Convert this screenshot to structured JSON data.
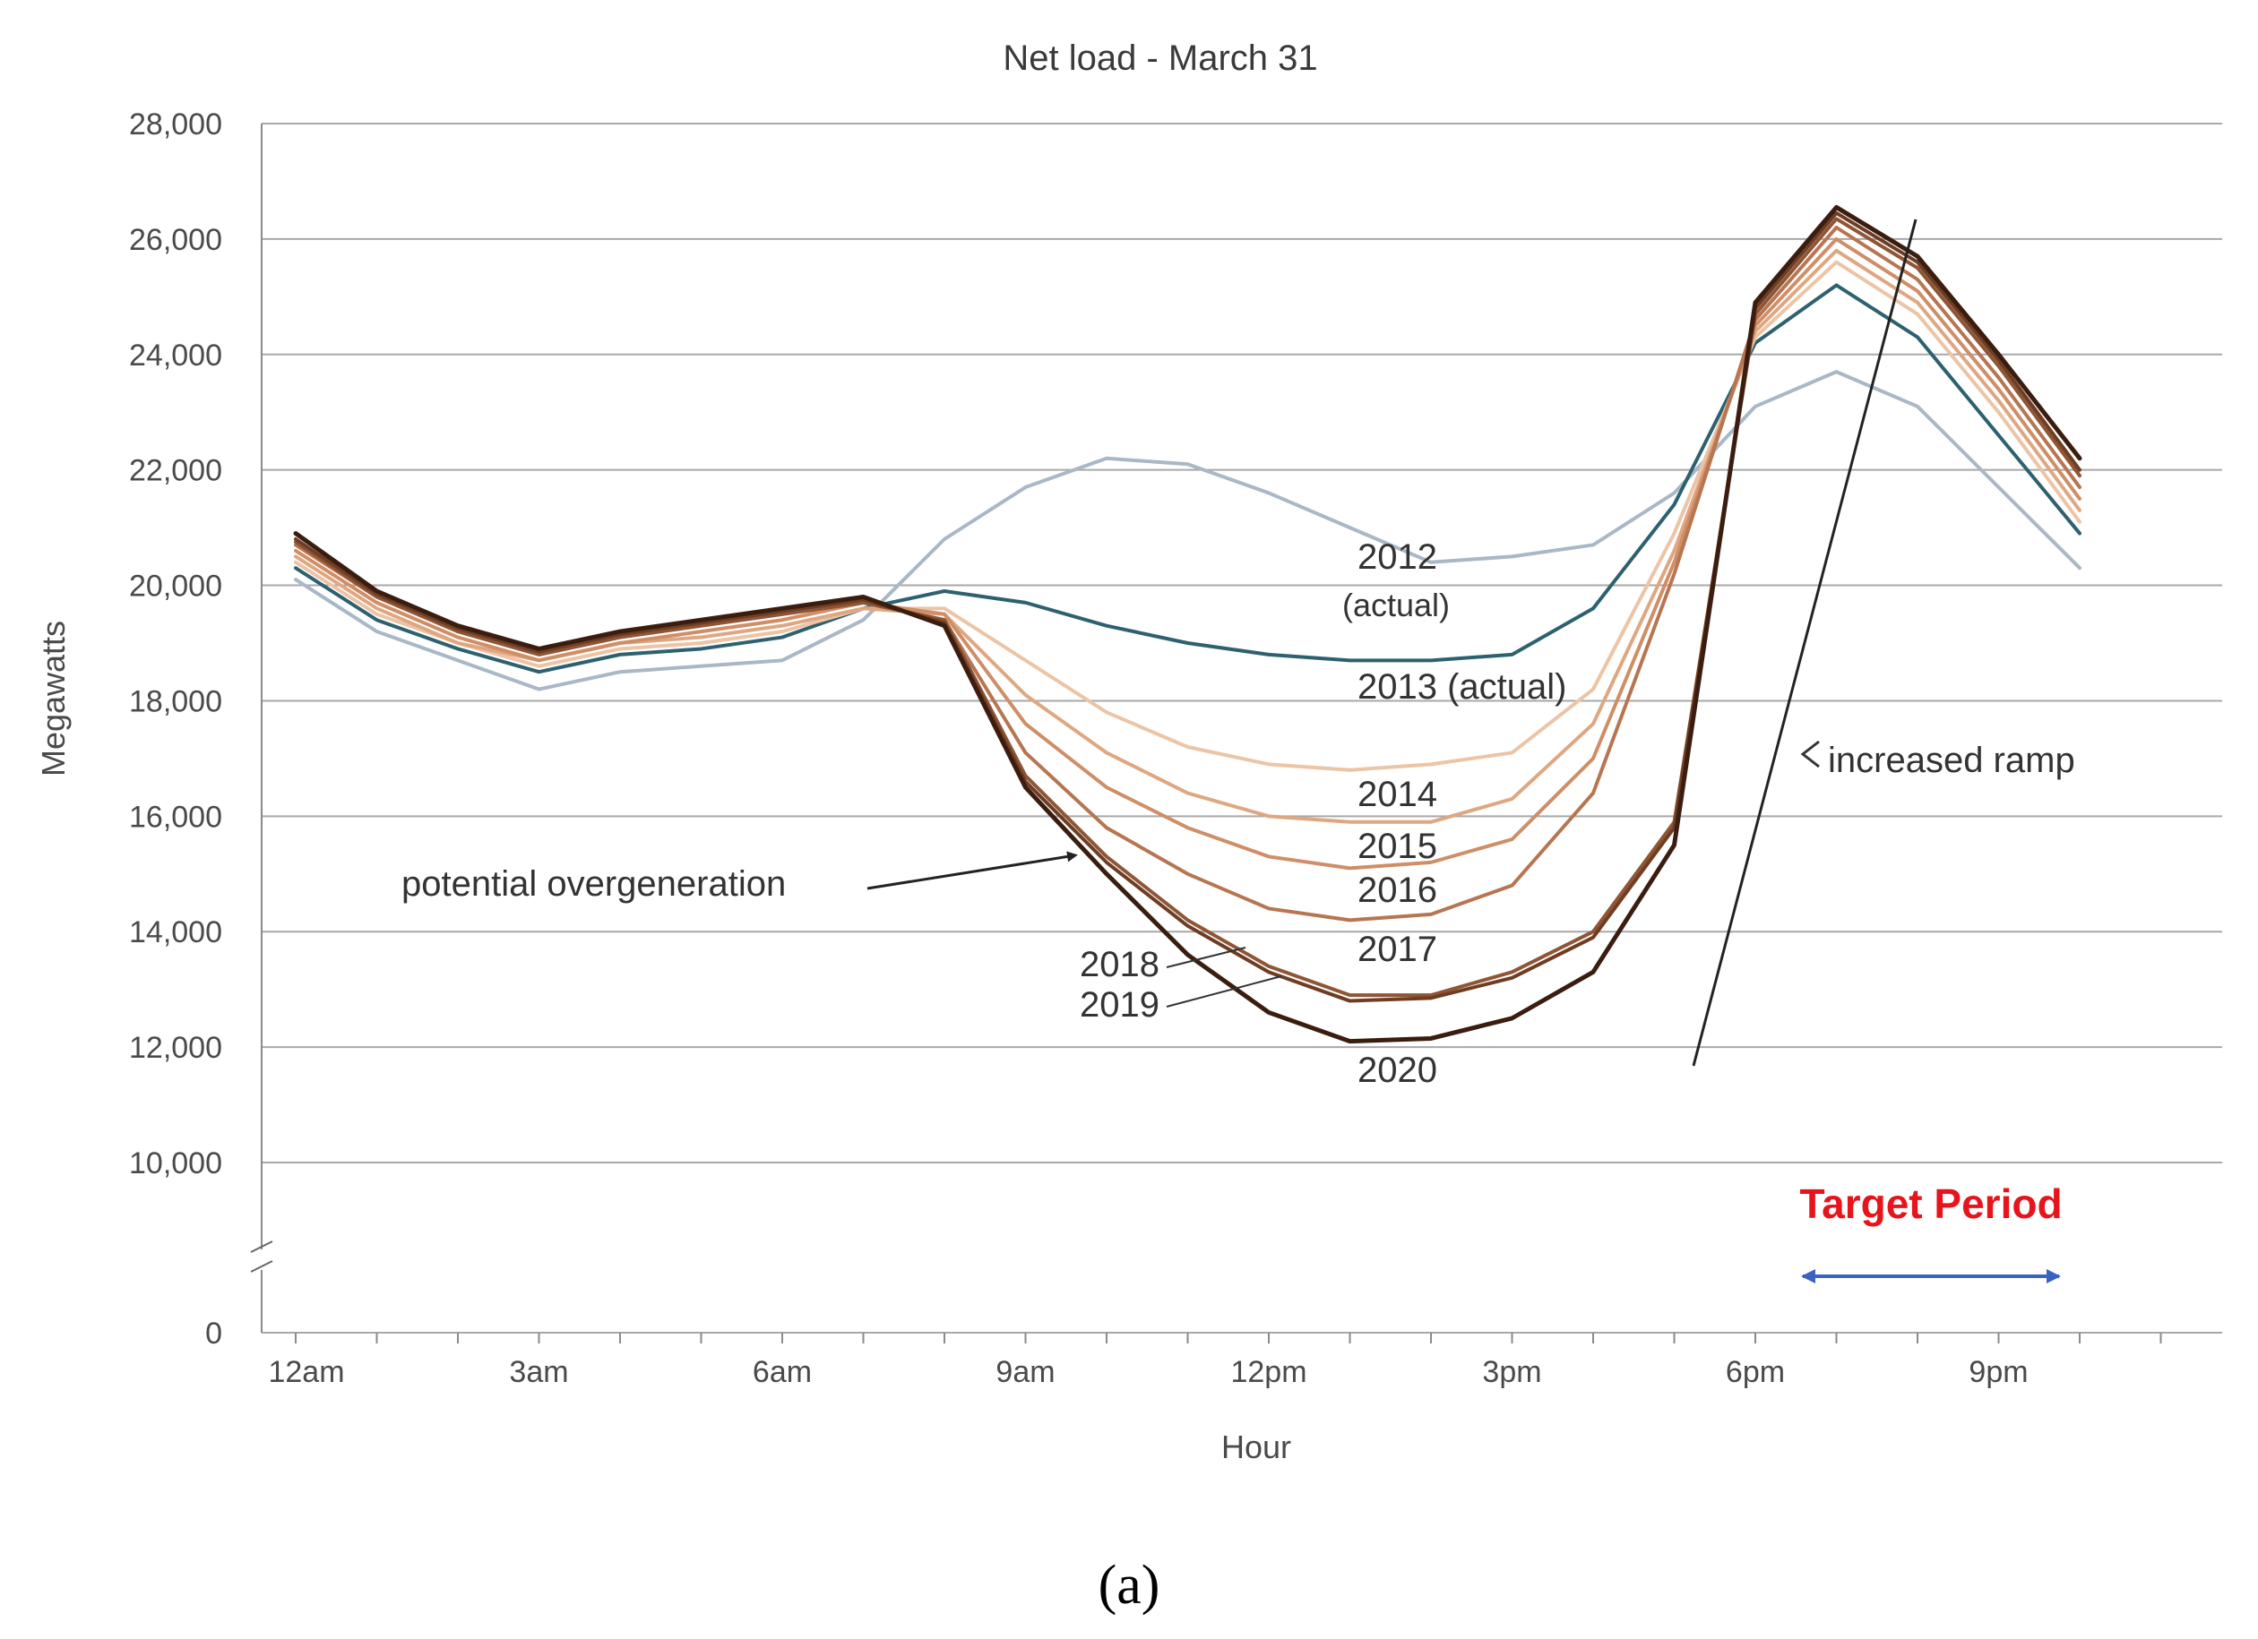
{
  "chart_data": {
    "type": "line",
    "title": "Net load - March 31",
    "xlabel": "Hour",
    "ylabel": "Megawatts",
    "x": [
      0,
      1,
      2,
      3,
      4,
      5,
      6,
      7,
      8,
      9,
      10,
      11,
      12,
      13,
      14,
      15,
      16,
      17,
      18,
      19,
      20,
      21,
      22,
      23
    ],
    "xticks": [
      {
        "hour": 0,
        "label": "12am"
      },
      {
        "hour": 3,
        "label": "3am"
      },
      {
        "hour": 6,
        "label": "6am"
      },
      {
        "hour": 9,
        "label": "9am"
      },
      {
        "hour": 12,
        "label": "12pm"
      },
      {
        "hour": 15,
        "label": "3pm"
      },
      {
        "hour": 18,
        "label": "6pm"
      },
      {
        "hour": 21,
        "label": "9pm"
      }
    ],
    "yticks": [
      {
        "value": 28000,
        "label": "28,000"
      },
      {
        "value": 26000,
        "label": "26,000"
      },
      {
        "value": 24000,
        "label": "24,000"
      },
      {
        "value": 22000,
        "label": "22,000"
      },
      {
        "value": 20000,
        "label": "20,000"
      },
      {
        "value": 18000,
        "label": "18,000"
      },
      {
        "value": 16000,
        "label": "16,000"
      },
      {
        "value": 14000,
        "label": "14,000"
      },
      {
        "value": 12000,
        "label": "12,000"
      },
      {
        "value": 10000,
        "label": "10,000"
      },
      {
        "value": 0,
        "label": "0"
      }
    ],
    "ylim": [
      10000,
      28000
    ],
    "y_axis_break": true,
    "grid": true,
    "series": [
      {
        "name": "2012 (actual)",
        "color": "#a9b7c6",
        "values": [
          20100,
          19200,
          18700,
          18200,
          18500,
          18600,
          18700,
          19400,
          20800,
          21700,
          22200,
          22100,
          21600,
          21000,
          20400,
          20500,
          20700,
          21600,
          23100,
          23700,
          23100,
          21700,
          20300,
          null
        ]
      },
      {
        "name": "2013 (actual)",
        "color": "#2d6170",
        "values": [
          20300,
          19400,
          18900,
          18500,
          18800,
          18900,
          19100,
          19600,
          19900,
          19700,
          19300,
          19000,
          18800,
          18700,
          18700,
          18800,
          19600,
          21400,
          24200,
          25200,
          24300,
          22600,
          20900,
          null
        ]
      },
      {
        "name": "2014",
        "color": "#ecc4a6",
        "values": [
          20400,
          19500,
          19000,
          18600,
          18900,
          19000,
          19200,
          19600,
          19600,
          18700,
          17800,
          17200,
          16900,
          16800,
          16900,
          17100,
          18200,
          20900,
          24300,
          25600,
          24700,
          23000,
          21100,
          null
        ]
      },
      {
        "name": "2015",
        "color": "#dfa781",
        "values": [
          20500,
          19600,
          19000,
          18700,
          19000,
          19100,
          19300,
          19600,
          19500,
          18100,
          17100,
          16400,
          16000,
          15900,
          15900,
          16300,
          17600,
          20600,
          24400,
          25800,
          24900,
          23200,
          21300,
          null
        ]
      },
      {
        "name": "2016",
        "color": "#cf8e66",
        "values": [
          20600,
          19700,
          19100,
          18700,
          19000,
          19200,
          19400,
          19700,
          19500,
          17600,
          16500,
          15800,
          15300,
          15100,
          15200,
          15600,
          17000,
          20400,
          24500,
          26000,
          25100,
          23400,
          21500,
          null
        ]
      },
      {
        "name": "2017",
        "color": "#b77551",
        "values": [
          20700,
          19800,
          19200,
          18800,
          19100,
          19300,
          19500,
          19700,
          19400,
          17100,
          15800,
          15000,
          14400,
          14200,
          14300,
          14800,
          16400,
          20200,
          24600,
          26200,
          25300,
          23600,
          21700,
          null
        ]
      },
      {
        "name": "2018",
        "color": "#8f5534",
        "values": [
          20750,
          19800,
          19200,
          18800,
          19100,
          19300,
          19500,
          19700,
          19400,
          16700,
          15300,
          14200,
          13400,
          12900,
          12900,
          13300,
          14000,
          15900,
          24700,
          26350,
          25500,
          23800,
          21900,
          null
        ]
      },
      {
        "name": "2019",
        "color": "#6e3e24",
        "values": [
          20800,
          19850,
          19250,
          18850,
          19150,
          19350,
          19550,
          19750,
          19350,
          16600,
          15200,
          14100,
          13300,
          12800,
          12850,
          13200,
          13900,
          15800,
          24800,
          26450,
          25600,
          23900,
          22000,
          null
        ]
      },
      {
        "name": "2020",
        "color": "#3b1d10",
        "values": [
          20900,
          19900,
          19300,
          18900,
          19200,
          19400,
          19600,
          19800,
          19300,
          16500,
          15000,
          13600,
          12600,
          12100,
          12150,
          12500,
          13300,
          15500,
          24900,
          26550,
          25700,
          24000,
          22200,
          null
        ]
      }
    ],
    "annotations": {
      "s2012_line1": "2012",
      "s2012_line2": "(actual)",
      "s2013": "2013 (actual)",
      "s2014": "2014",
      "s2015": "2015",
      "s2016": "2016",
      "s2017": "2017",
      "s2018": "2018",
      "s2019": "2019",
      "s2020": "2020",
      "overgeneration": "potential overgeneration",
      "ramp": "increased ramp",
      "target_period": "Target Period"
    },
    "colors": {
      "target_text": "#e8141c",
      "target_arrow": "#3b63c4",
      "grid": "#a8a8a8"
    }
  },
  "panel_label": "(a)"
}
